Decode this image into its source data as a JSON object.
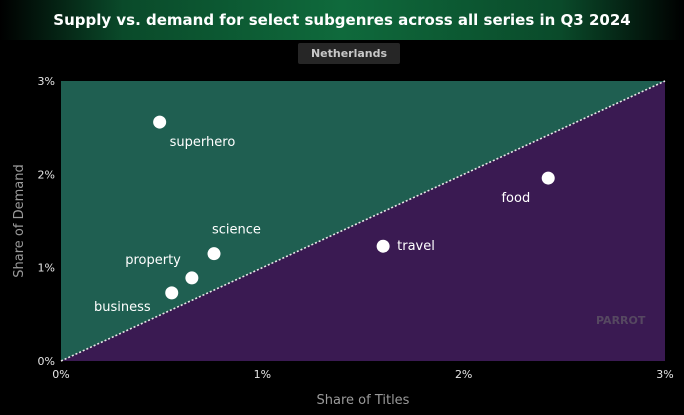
{
  "chart_data": {
    "type": "scatter",
    "title": "Supply vs. demand for select subgenres across all series in Q3 2024",
    "subtitle": "Netherlands",
    "xlabel": "Share of Titles",
    "ylabel": "Share of Demand",
    "xlim": [
      0,
      3
    ],
    "ylim": [
      0,
      3
    ],
    "x_ticks": [
      "0%",
      "1%",
      "2%",
      "3%"
    ],
    "y_ticks": [
      "0%",
      "1%",
      "2%",
      "3%"
    ],
    "reference_line": "y = x",
    "regions": {
      "above_color": "#1f5f51",
      "below_color": "#3a1a52"
    },
    "points": [
      {
        "label": "superhero",
        "x": 0.49,
        "y": 2.56
      },
      {
        "label": "food",
        "x": 2.42,
        "y": 1.96
      },
      {
        "label": "travel",
        "x": 1.6,
        "y": 1.23
      },
      {
        "label": "science",
        "x": 0.76,
        "y": 1.15
      },
      {
        "label": "property",
        "x": 0.65,
        "y": 0.89
      },
      {
        "label": "business",
        "x": 0.55,
        "y": 0.73
      }
    ],
    "watermark": "PARROT"
  }
}
